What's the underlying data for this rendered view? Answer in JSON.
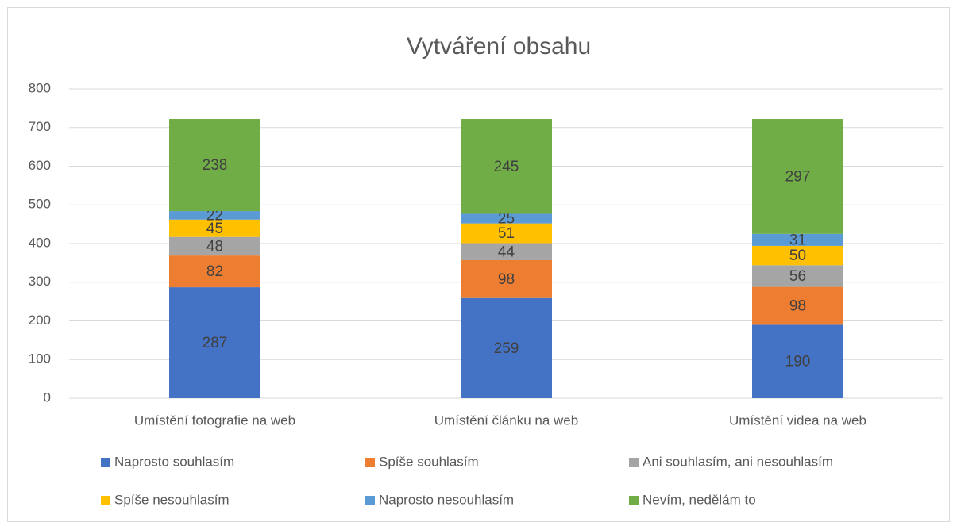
{
  "chart_data": {
    "type": "bar",
    "stacked": true,
    "title": "Vytváření obsahu",
    "categories": [
      "Umístění fotografie na web",
      "Umístění článku na web",
      "Umístění videa na web"
    ],
    "series": [
      {
        "name": "Naprosto souhlasím",
        "color": "#4472c4",
        "values": [
          287,
          259,
          190
        ]
      },
      {
        "name": "Spíše souhlasím",
        "color": "#ed7d31",
        "values": [
          82,
          98,
          98
        ]
      },
      {
        "name": "Ani souhlasím, ani nesouhlasím",
        "color": "#a5a5a5",
        "values": [
          48,
          44,
          56
        ]
      },
      {
        "name": "Spíše nesouhlasím",
        "color": "#ffc000",
        "values": [
          45,
          51,
          50
        ]
      },
      {
        "name": "Naprosto nesouhlasím",
        "color": "#5b9bd5",
        "values": [
          22,
          25,
          31
        ]
      },
      {
        "name": "Nevím, nedělám to",
        "color": "#70ad47",
        "values": [
          238,
          245,
          297
        ]
      }
    ],
    "ylim": [
      0,
      800
    ],
    "yticks": [
      0,
      100,
      200,
      300,
      400,
      500,
      600,
      700,
      800
    ],
    "grid": true,
    "legend": "bottom"
  }
}
